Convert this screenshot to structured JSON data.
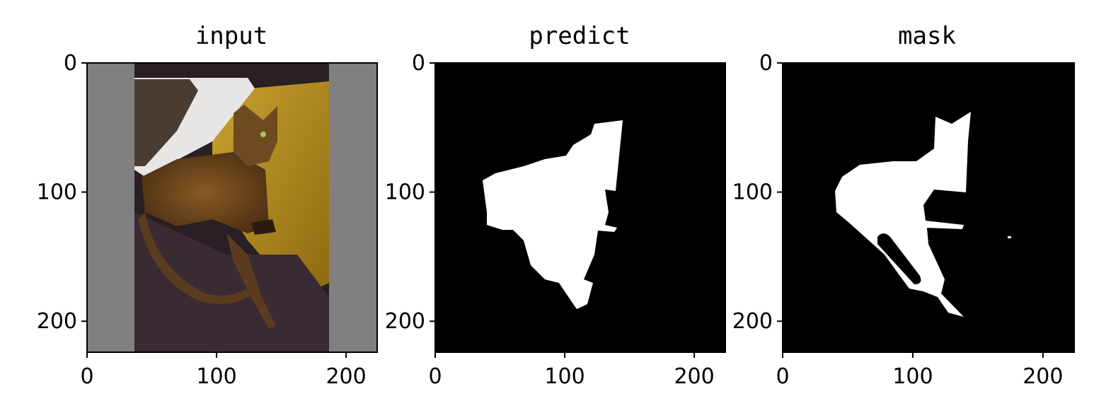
{
  "chart_data": [
    {
      "type": "image",
      "title": "input",
      "xlim": [
        0,
        224
      ],
      "ylim": [
        224,
        0
      ],
      "xticks": [
        "0",
        "100",
        "200"
      ],
      "yticks": [
        "0",
        "100",
        "200"
      ],
      "image": {
        "content": "photo of a cat lying on a yellow and purple blanket, padded with grey side bars",
        "padding_color": "#808080",
        "photo_x_range": [
          37,
          187
        ]
      }
    },
    {
      "type": "image",
      "title": "predict",
      "xlim": [
        0,
        224
      ],
      "ylim": [
        224,
        0
      ],
      "xticks": [
        "0",
        "100",
        "200"
      ],
      "yticks": [
        "0",
        "100",
        "200"
      ],
      "image": {
        "content": "binary segmentation prediction (white blob on black)",
        "background": "#000000",
        "foreground": "#ffffff"
      }
    },
    {
      "type": "image",
      "title": "mask",
      "xlim": [
        0,
        224
      ],
      "ylim": [
        224,
        0
      ],
      "xticks": [
        "0",
        "100",
        "200"
      ],
      "yticks": [
        "0",
        "100",
        "200"
      ],
      "image": {
        "content": "ground-truth binary mask of the cat silhouette",
        "background": "#000000",
        "foreground": "#ffffff"
      }
    }
  ]
}
